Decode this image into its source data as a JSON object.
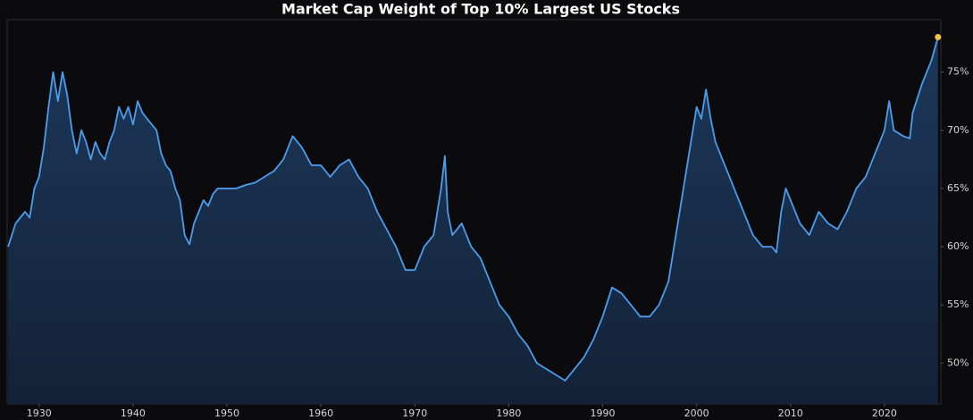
{
  "chart_data": {
    "type": "line",
    "title": "Market Cap Weight of Top 10% Largest US Stocks",
    "x": [
      1926.7,
      1927.5,
      1928.5,
      1929.0,
      1929.5,
      1930.0,
      1930.5,
      1931.0,
      1931.5,
      1932.0,
      1932.5,
      1933.0,
      1933.5,
      1934.0,
      1934.5,
      1935.0,
      1935.5,
      1936.0,
      1936.5,
      1937.0,
      1937.5,
      1938.0,
      1938.5,
      1939.0,
      1939.5,
      1940.0,
      1940.5,
      1941.0,
      1941.5,
      1942.0,
      1942.5,
      1943.0,
      1943.5,
      1944.0,
      1944.5,
      1945.0,
      1945.5,
      1946.0,
      1946.5,
      1947.0,
      1947.5,
      1948.0,
      1948.5,
      1949.0,
      1950,
      1951,
      1952,
      1953,
      1954,
      1955,
      1956,
      1957,
      1958,
      1959,
      1960,
      1961,
      1962,
      1963,
      1964,
      1965,
      1966,
      1967,
      1968,
      1969,
      1970,
      1971,
      1972,
      1972.8,
      1973.2,
      1973.5,
      1974,
      1975,
      1976,
      1977,
      1978,
      1979,
      1980,
      1981,
      1982,
      1983,
      1984,
      1985,
      1986,
      1987,
      1988,
      1989,
      1990,
      1991,
      1992,
      1993,
      1994,
      1995,
      1996,
      1997,
      1998,
      1999,
      2000,
      2000.5,
      2001,
      2001.5,
      2002,
      2003,
      2004,
      2005,
      2006,
      2007,
      2008,
      2008.5,
      2009,
      2009.5,
      2010,
      2011,
      2012,
      2013,
      2014,
      2015,
      2016,
      2017,
      2018,
      2019,
      2020,
      2020.5,
      2021,
      2022,
      2022.7,
      2023,
      2024,
      2025,
      2025.7
    ],
    "series": [
      {
        "color": "#4a9eed",
        "values": [
          60,
          62,
          63,
          62.5,
          65,
          66,
          68.5,
          72,
          75,
          72.5,
          75,
          73,
          70,
          68,
          70,
          69,
          67.5,
          69,
          68,
          67.5,
          69,
          70,
          72,
          71,
          72,
          70.5,
          72.5,
          71.5,
          71,
          70.5,
          70,
          68,
          67,
          66.5,
          65,
          64,
          61,
          60.2,
          62,
          63,
          64,
          63.5,
          64.5,
          65,
          65,
          65,
          65.3,
          65.5,
          66,
          66.5,
          67.5,
          69.5,
          68.5,
          67,
          67,
          66,
          67,
          67.5,
          66,
          65,
          63,
          61.5,
          60,
          58,
          58,
          60,
          61,
          65,
          67.8,
          63,
          61,
          62,
          60,
          59,
          57,
          55,
          54,
          52.5,
          51.5,
          50,
          49.5,
          49,
          48.5,
          49.5,
          50.5,
          52,
          54,
          56.5,
          56,
          55,
          54,
          54,
          55,
          57,
          62,
          67,
          72,
          71,
          73.5,
          71,
          69,
          67,
          65,
          63,
          61,
          60,
          60,
          59.5,
          63,
          65,
          64,
          62,
          61,
          63,
          62,
          61.5,
          63,
          65,
          66,
          68,
          70,
          72.5,
          70,
          69.5,
          69.3,
          71.5,
          74,
          76,
          78
        ]
      }
    ],
    "marker_color": "#f2c14e",
    "xlim": [
      1926.6,
      2026
    ],
    "xticks": [
      1930,
      1940,
      1950,
      1960,
      1970,
      1980,
      1990,
      2000,
      2010,
      2020
    ],
    "ylim": [
      46.5,
      79.5
    ],
    "yticks": [
      {
        "value": 50,
        "label": "50%"
      },
      {
        "value": 55,
        "label": "55%"
      },
      {
        "value": 60,
        "label": "60%"
      },
      {
        "value": 65,
        "label": "65%"
      },
      {
        "value": 70,
        "label": "70%"
      },
      {
        "value": 75,
        "label": "75%"
      }
    ]
  }
}
